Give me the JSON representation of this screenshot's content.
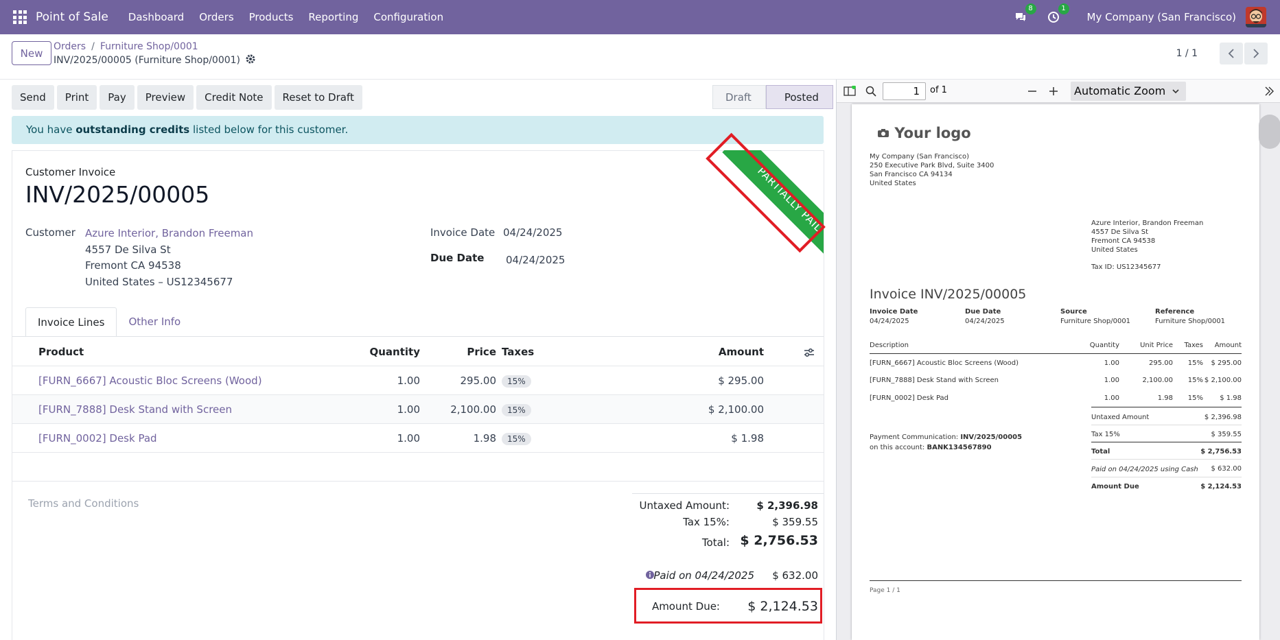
{
  "navbar": {
    "app_name": "Point of Sale",
    "menu": [
      "Dashboard",
      "Orders",
      "Products",
      "Reporting",
      "Configuration"
    ],
    "messages_count": "8",
    "activities_count": "1",
    "company": "My Company (San Francisco)",
    "color": "#71639e"
  },
  "control": {
    "new_label": "New",
    "breadcrumb": [
      "Orders",
      "Furniture Shop/0001"
    ],
    "record_name": "INV/2025/00005 (Furniture Shop/0001)",
    "pager": "1 / 1"
  },
  "actions": [
    "Send",
    "Print",
    "Pay",
    "Preview",
    "Credit Note",
    "Reset to Draft"
  ],
  "status": {
    "draft": "Draft",
    "posted": "Posted"
  },
  "alert": {
    "prefix": "You have ",
    "bold": "outstanding credits",
    "suffix": " listed below for this customer."
  },
  "invoice": {
    "type_label": "Customer Invoice",
    "number": "INV/2025/00005",
    "ribbon": "PARTIALLY PAID",
    "customer_label": "Customer",
    "customer_name": "Azure Interior, Brandon Freeman",
    "address": [
      "4557 De Silva St",
      "Fremont CA 94538",
      "United States – US12345677"
    ],
    "invoice_date_label": "Invoice Date",
    "invoice_date": "04/24/2025",
    "due_date_label": "Due Date",
    "due_date": "04/24/2025"
  },
  "tabs": [
    "Invoice Lines",
    "Other Info"
  ],
  "lines": {
    "headers": {
      "product": "Product",
      "quantity": "Quantity",
      "price": "Price",
      "taxes": "Taxes",
      "amount": "Amount"
    },
    "rows": [
      {
        "product": "[FURN_6667] Acoustic Bloc Screens (Wood)",
        "quantity": "1.00",
        "price": "295.00",
        "tax": "15%",
        "amount": "$ 295.00"
      },
      {
        "product": "[FURN_7888] Desk Stand with Screen",
        "quantity": "1.00",
        "price": "2,100.00",
        "tax": "15%",
        "amount": "$ 2,100.00"
      },
      {
        "product": "[FURN_0002] Desk Pad",
        "quantity": "1.00",
        "price": "1.98",
        "tax": "15%",
        "amount": "$ 1.98"
      }
    ]
  },
  "terms_placeholder": "Terms and Conditions",
  "totals": {
    "untaxed_label": "Untaxed Amount:",
    "untaxed": "$ 2,396.98",
    "tax_label": "Tax 15%:",
    "tax": "$ 359.55",
    "total_label": "Total:",
    "total": "$ 2,756.53",
    "paid_label": "Paid on 04/24/2025",
    "paid": "$ 632.00",
    "due_label": "Amount Due:",
    "due": "$ 2,124.53"
  },
  "pdf": {
    "page_input": "1",
    "of_pages": "of 1",
    "zoom": "Automatic Zoom",
    "logo": "Your logo",
    "company_lines": [
      "My Company (San Francisco)",
      "250 Executive Park Blvd, Suite 3400",
      "San Francisco CA 94134",
      "United States"
    ],
    "customer_lines": [
      "Azure Interior, Brandon Freeman",
      "4557 De Silva St",
      "Fremont CA 94538",
      "United States"
    ],
    "tax_id": "Tax ID: US12345677",
    "title": "Invoice INV/2025/00005",
    "meta": [
      {
        "label": "Invoice Date",
        "value": "04/24/2025"
      },
      {
        "label": "Due Date",
        "value": "04/24/2025"
      },
      {
        "label": "Source",
        "value": "Furniture Shop/0001"
      },
      {
        "label": "Reference",
        "value": "Furniture Shop/0001"
      }
    ],
    "table_headers": [
      "Description",
      "Quantity",
      "Unit Price",
      "Taxes",
      "Amount"
    ],
    "rows": [
      [
        "[FURN_6667] Acoustic Bloc Screens (Wood)",
        "1.00",
        "295.00",
        "15%",
        "$ 295.00"
      ],
      [
        "[FURN_7888] Desk Stand with Screen",
        "1.00",
        "2,100.00",
        "15%",
        "$ 2,100.00"
      ],
      [
        "[FURN_0002] Desk Pad",
        "1.00",
        "1.98",
        "15%",
        "$ 1.98"
      ]
    ],
    "payment_comm_label": "Payment Communication: ",
    "payment_comm": "INV/2025/00005",
    "account_label": "on this account: ",
    "account": "BANK134567890",
    "totals": [
      {
        "label": "Untaxed Amount",
        "value": "$ 2,396.98"
      },
      {
        "label": "Tax 15%",
        "value": "$ 359.55"
      },
      {
        "label": "Total",
        "value": "$ 2,756.53"
      },
      {
        "label": "Paid on 04/24/2025 using Cash",
        "value": "$ 632.00"
      },
      {
        "label": "Amount Due",
        "value": "$ 2,124.53"
      }
    ],
    "footer": "Page 1 / 1"
  }
}
